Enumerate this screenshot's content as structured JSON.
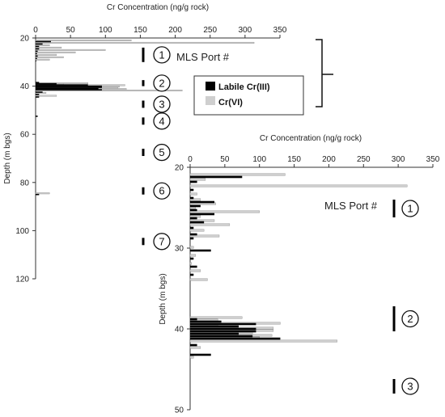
{
  "chart_data": [
    {
      "type": "bar",
      "orientation": "horizontal",
      "xlabel": "Cr Concentration (ng/g rock)",
      "ylabel": "Depth (m bgs)",
      "xlim": [
        0,
        350
      ],
      "ylim": [
        20,
        120
      ],
      "xticks": [
        "0",
        "50",
        "100",
        "150",
        "200",
        "250",
        "300",
        "350"
      ],
      "yticks": [
        "20",
        "40",
        "60",
        "80",
        "100",
        "120"
      ],
      "port_label": "MLS Port #",
      "ports": [
        {
          "num": "1",
          "depth_top": 24,
          "depth_bottom": 30
        },
        {
          "num": "2",
          "depth_top": 37.5,
          "depth_bottom": 40
        },
        {
          "num": "3",
          "depth_top": 46,
          "depth_bottom": 49
        },
        {
          "num": "4",
          "depth_top": 53,
          "depth_bottom": 56
        },
        {
          "num": "5",
          "depth_top": 66,
          "depth_bottom": 69
        },
        {
          "num": "6",
          "depth_top": 82,
          "depth_bottom": 85
        },
        {
          "num": "7",
          "depth_top": 103,
          "depth_bottom": 106
        }
      ],
      "series": [
        {
          "name": "Labile Cr(III)",
          "color": "#000000",
          "depth": [
            21.5,
            22.5,
            23.5,
            24.5,
            25.5,
            26.5,
            27.5,
            28.5,
            29.5,
            38.5,
            39.0,
            39.5,
            40.0,
            40.5,
            41.0,
            41.5,
            42.5,
            43.5,
            44.5,
            52.5,
            85.0
          ],
          "values": [
            22,
            10,
            5,
            5,
            3,
            2,
            3,
            2,
            1,
            5,
            30,
            75,
            95,
            95,
            90,
            95,
            10,
            5,
            5,
            3,
            5
          ]
        },
        {
          "name": "Cr(VI)",
          "color": "#cfcfcf",
          "depth": [
            21.0,
            22.0,
            23.0,
            24.0,
            25.0,
            26.0,
            27.0,
            28.0,
            29.0,
            38.8,
            39.2,
            39.6,
            40.2,
            40.8,
            41.2,
            41.8,
            42.8,
            44.0,
            84.5
          ],
          "values": [
            137,
            313,
            20,
            37,
            100,
            57,
            30,
            40,
            20,
            75,
            40,
            128,
            120,
            118,
            130,
            210,
            15,
            30,
            20
          ]
        }
      ]
    },
    {
      "type": "bar",
      "orientation": "horizontal",
      "xlabel": "Cr Concentration (ng/g rock)",
      "ylabel": "Depth (m bgs)",
      "xlim": [
        0,
        350
      ],
      "ylim": [
        20,
        50
      ],
      "xticks": [
        "0",
        "50",
        "100",
        "150",
        "200",
        "250",
        "300",
        "350"
      ],
      "yticks": [
        "20",
        "30",
        "40",
        "50"
      ],
      "port_label": "MLS Port #",
      "ports": [
        {
          "num": "1",
          "depth_top": 24.0,
          "depth_bottom": 26.2
        },
        {
          "num": "2",
          "depth_top": 37.2,
          "depth_bottom": 40.3
        },
        {
          "num": "3",
          "depth_top": 46.2,
          "depth_bottom": 48.0
        }
      ],
      "series": [
        {
          "name": "Labile Cr(III)",
          "color": "#000000",
          "depth": [
            21.2,
            21.8,
            22.8,
            23.8,
            24.3,
            24.8,
            25.3,
            25.8,
            26.3,
            26.8,
            27.5,
            28.3,
            28.8,
            30.3,
            31.3,
            32.3,
            33.3,
            38.8,
            39.1,
            39.4,
            39.7,
            40.0,
            40.3,
            40.6,
            40.9,
            41.2,
            42.0,
            43.2
          ],
          "values": [
            75,
            10,
            5,
            5,
            35,
            15,
            10,
            35,
            10,
            20,
            5,
            10,
            5,
            30,
            5,
            10,
            5,
            10,
            45,
            95,
            70,
            95,
            95,
            70,
            90,
            130,
            10,
            30
          ]
        },
        {
          "name": "Cr(VI)",
          "color": "#cfcfcf",
          "depth": [
            20.9,
            21.5,
            22.3,
            23.3,
            24.0,
            24.5,
            25.0,
            25.5,
            26.1,
            26.6,
            27.1,
            27.8,
            28.5,
            29.9,
            30.9,
            31.9,
            32.8,
            33.9,
            38.6,
            38.9,
            39.3,
            39.6,
            39.9,
            40.2,
            40.5,
            40.8,
            41.1,
            41.5,
            42.3,
            43.5
          ],
          "values": [
            137,
            22,
            313,
            10,
            15,
            37,
            8,
            100,
            15,
            35,
            57,
            20,
            42,
            5,
            8,
            2,
            15,
            25,
            75,
            40,
            130,
            40,
            120,
            120,
            90,
            118,
            100,
            212,
            15,
            5
          ]
        }
      ]
    }
  ],
  "legend": {
    "items": [
      {
        "label": "Labile Cr(III)",
        "color": "#000000"
      },
      {
        "label": "Cr(VI)",
        "color": "#cfcfcf"
      }
    ]
  }
}
